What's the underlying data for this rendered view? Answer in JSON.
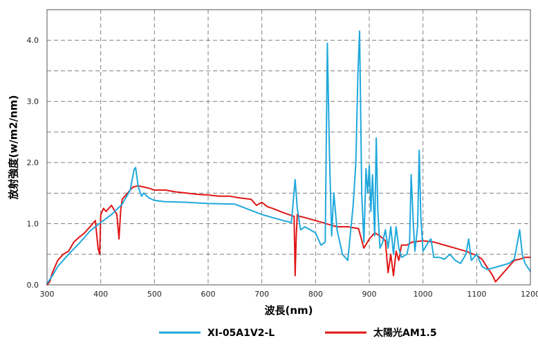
{
  "chart_data": {
    "type": "line",
    "xlabel": "波長(nm)",
    "ylabel": "放射強度(w/m2/nm)",
    "xlim": [
      300,
      1200
    ],
    "ylim": [
      0,
      4.5
    ],
    "x_ticks": [
      "300",
      "400",
      "500",
      "600",
      "700",
      "800",
      "900",
      "1000",
      "1100",
      "1200"
    ],
    "y_ticks": [
      "0.0",
      "1.0",
      "2.0",
      "3.0",
      "4.0"
    ],
    "grid": true,
    "legend_position": "bottom",
    "series": [
      {
        "name": "XI-05A1V2-L",
        "color": "#1fa8dc",
        "x": [
          300,
          310,
          320,
          340,
          360,
          380,
          400,
          420,
          440,
          455,
          462,
          465,
          470,
          476,
          480,
          490,
          500,
          520,
          560,
          600,
          650,
          700,
          720,
          740,
          755,
          762,
          766,
          772,
          780,
          800,
          810,
          818,
          822,
          826,
          830,
          834,
          840,
          850,
          860,
          870,
          875,
          879,
          882,
          886,
          890,
          894,
          897,
          900,
          903,
          906,
          910,
          913,
          916,
          920,
          925,
          930,
          935,
          940,
          945,
          950,
          955,
          960,
          970,
          975,
          978,
          982,
          985,
          990,
          993,
          996,
          1000,
          1010,
          1015,
          1020,
          1030,
          1040,
          1050,
          1060,
          1070,
          1080,
          1085,
          1090,
          1100,
          1110,
          1120,
          1140,
          1160,
          1170,
          1175,
          1180,
          1185,
          1190,
          1200
        ],
        "y": [
          0.02,
          0.15,
          0.3,
          0.5,
          0.68,
          0.88,
          1.02,
          1.15,
          1.32,
          1.55,
          1.88,
          1.92,
          1.6,
          1.45,
          1.5,
          1.42,
          1.38,
          1.36,
          1.35,
          1.33,
          1.32,
          1.15,
          1.1,
          1.05,
          1.02,
          1.72,
          1.25,
          0.9,
          0.95,
          0.85,
          0.65,
          0.7,
          3.95,
          2.1,
          0.8,
          1.5,
          0.9,
          0.5,
          0.4,
          1.3,
          2.0,
          3.5,
          4.15,
          1.5,
          0.7,
          1.9,
          1.5,
          1.95,
          1.2,
          1.8,
          0.8,
          2.4,
          1.2,
          0.6,
          0.7,
          0.9,
          0.6,
          0.95,
          0.5,
          0.95,
          0.6,
          0.45,
          0.5,
          0.7,
          1.8,
          1.0,
          0.55,
          0.95,
          2.2,
          1.1,
          0.55,
          0.7,
          0.75,
          0.45,
          0.45,
          0.42,
          0.5,
          0.4,
          0.35,
          0.5,
          0.75,
          0.4,
          0.5,
          0.3,
          0.25,
          0.3,
          0.35,
          0.42,
          0.65,
          0.9,
          0.5,
          0.35,
          0.22
        ]
      },
      {
        "name": "太陽光AM1.5",
        "color": "#e01515",
        "x": [
          300,
          305,
          310,
          320,
          330,
          340,
          350,
          360,
          370,
          380,
          390,
          395,
          398,
          400,
          405,
          410,
          420,
          430,
          434,
          437,
          440,
          450,
          460,
          470,
          480,
          490,
          500,
          520,
          540,
          560,
          580,
          600,
          620,
          640,
          660,
          680,
          690,
          700,
          710,
          720,
          740,
          760,
          762,
          764,
          766,
          770,
          780,
          800,
          820,
          840,
          860,
          880,
          890,
          900,
          910,
          920,
          930,
          935,
          940,
          945,
          950,
          955,
          960,
          970,
          980,
          1000,
          1020,
          1040,
          1060,
          1080,
          1100,
          1110,
          1120,
          1130,
          1135,
          1140,
          1150,
          1160,
          1170,
          1180,
          1190,
          1200
        ],
        "y": [
          0.0,
          0.05,
          0.2,
          0.4,
          0.5,
          0.55,
          0.7,
          0.78,
          0.85,
          0.95,
          1.05,
          0.6,
          0.5,
          1.15,
          1.25,
          1.2,
          1.3,
          1.15,
          0.75,
          1.2,
          1.4,
          1.5,
          1.6,
          1.62,
          1.6,
          1.58,
          1.55,
          1.55,
          1.52,
          1.5,
          1.48,
          1.47,
          1.45,
          1.45,
          1.42,
          1.4,
          1.3,
          1.35,
          1.28,
          1.25,
          1.18,
          1.12,
          0.15,
          0.8,
          1.15,
          1.12,
          1.1,
          1.05,
          1.0,
          0.95,
          0.95,
          0.92,
          0.6,
          0.75,
          0.85,
          0.8,
          0.72,
          0.2,
          0.5,
          0.15,
          0.55,
          0.4,
          0.65,
          0.65,
          0.7,
          0.72,
          0.7,
          0.65,
          0.6,
          0.55,
          0.48,
          0.42,
          0.28,
          0.15,
          0.05,
          0.1,
          0.2,
          0.3,
          0.4,
          0.42,
          0.45,
          0.45
        ]
      }
    ]
  }
}
